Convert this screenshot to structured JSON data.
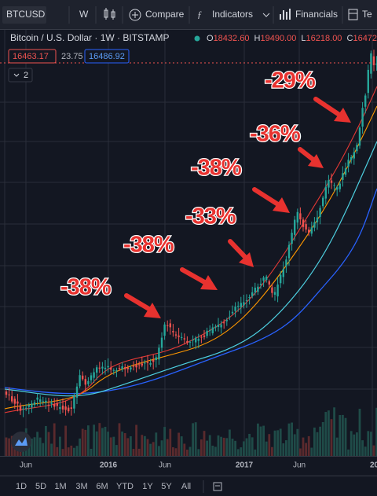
{
  "toolbar": {
    "symbol": "BTCUSD",
    "interval": "W",
    "compare": "Compare",
    "indicators": "Indicators",
    "financials": "Financials",
    "more": "Te"
  },
  "legend": {
    "title": "Bitcoin / U.S. Dollar · 1W · BITSTAMP",
    "ohlc": [
      {
        "label": "O",
        "value": "18432.60"
      },
      {
        "label": "H",
        "value": "19490.00"
      },
      {
        "label": "L",
        "value": "16218.00"
      },
      {
        "label": "C",
        "value": "16472."
      }
    ],
    "bid": "16463.17",
    "spread": "23.75",
    "ask": "16486.92",
    "collapse": "2"
  },
  "annotations": [
    "-29%",
    "-36%",
    "-38%",
    "-33%",
    "-38%",
    "-38%"
  ],
  "x_axis": [
    "Jun",
    "2016",
    "Jun",
    "2017",
    "Jun",
    "20"
  ],
  "timeframes": [
    "1D",
    "5D",
    "1M",
    "3M",
    "6M",
    "YTD",
    "1Y",
    "5Y",
    "All"
  ]
}
